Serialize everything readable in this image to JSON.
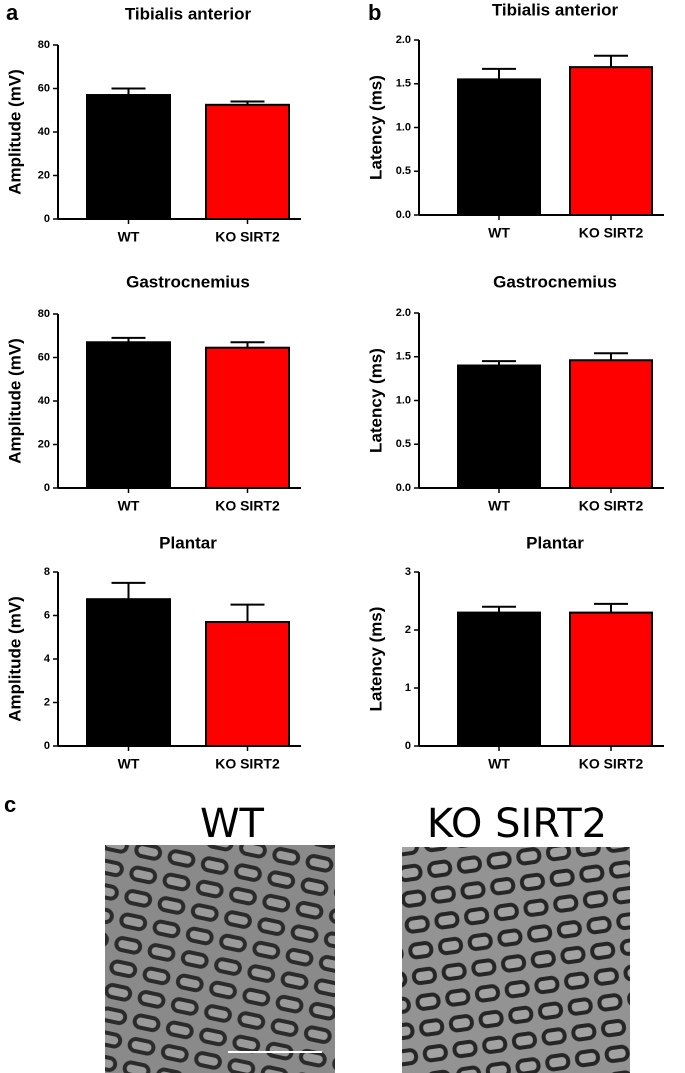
{
  "figure": {
    "panel_labels": [
      "a",
      "b",
      "c"
    ],
    "images": [
      {
        "label": "WT"
      },
      {
        "label": "KO SIRT2"
      }
    ]
  },
  "chart_data": [
    {
      "type": "bar",
      "title": "Tibialis anterior",
      "y_label": "Amplitude (mV)",
      "categories": [
        "WT",
        "KO SIRT2"
      ],
      "values": [
        57,
        52.5
      ],
      "errors": [
        3,
        1.5
      ],
      "colors": [
        "#000000",
        "#ff0000"
      ],
      "ylim": [
        0,
        80
      ],
      "yticks": [
        0,
        20,
        40,
        60,
        80
      ]
    },
    {
      "type": "bar",
      "title": "Tibialis anterior",
      "y_label": "Latency (ms)",
      "categories": [
        "WT",
        "KO SIRT2"
      ],
      "values": [
        1.55,
        1.69
      ],
      "errors": [
        0.12,
        0.13
      ],
      "colors": [
        "#000000",
        "#ff0000"
      ],
      "ylim": [
        0,
        2
      ],
      "yticks": [
        {
          "value": 0,
          "label": "0.0"
        },
        0.5,
        {
          "value": 1,
          "label": "1.0"
        },
        1.5,
        {
          "value": 2,
          "label": "2.0"
        }
      ]
    },
    {
      "type": "bar",
      "title": "Gastrocnemius",
      "y_label": "Amplitude (mV)",
      "categories": [
        "WT",
        "KO SIRT2"
      ],
      "values": [
        67,
        64.5
      ],
      "errors": [
        2,
        2.5
      ],
      "colors": [
        "#000000",
        "#ff0000"
      ],
      "ylim": [
        0,
        80
      ],
      "yticks": [
        0,
        20,
        40,
        60,
        80
      ]
    },
    {
      "type": "bar",
      "title": "Gastrocnemius",
      "y_label": "Latency (ms)",
      "categories": [
        "WT",
        "KO SIRT2"
      ],
      "values": [
        1.4,
        1.46
      ],
      "errors": [
        0.05,
        0.08
      ],
      "colors": [
        "#000000",
        "#ff0000"
      ],
      "ylim": [
        0,
        2
      ],
      "yticks": [
        {
          "value": 0,
          "label": "0.0"
        },
        0.5,
        {
          "value": 1,
          "label": "1.0"
        },
        1.5,
        {
          "value": 2,
          "label": "2.0"
        }
      ]
    },
    {
      "type": "bar",
      "title": "Plantar",
      "y_label": "Amplitude (mV)",
      "categories": [
        "WT",
        "KO SIRT2"
      ],
      "values": [
        6.75,
        5.7
      ],
      "errors": [
        0.75,
        0.8
      ],
      "colors": [
        "#000000",
        "#ff0000"
      ],
      "ylim": [
        0,
        8
      ],
      "yticks": [
        0,
        2,
        4,
        6,
        8
      ]
    },
    {
      "type": "bar",
      "title": "Plantar",
      "y_label": "Latency (ms)",
      "categories": [
        "WT",
        "KO SIRT2"
      ],
      "values": [
        2.3,
        2.3
      ],
      "errors": [
        0.1,
        0.15
      ],
      "colors": [
        "#000000",
        "#ff0000"
      ],
      "ylim": [
        0,
        3
      ],
      "yticks": [
        0,
        1,
        2,
        3
      ]
    }
  ]
}
